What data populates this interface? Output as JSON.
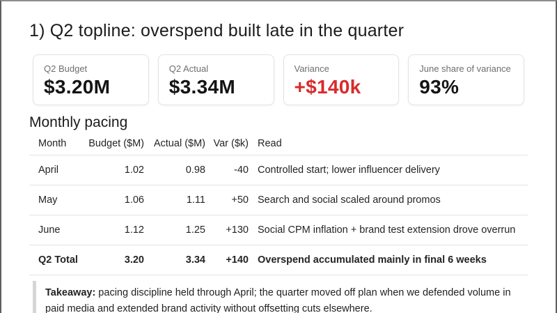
{
  "slide": {
    "title": "1) Q2 topline: overspend built late in the quarter"
  },
  "kpi_cards": [
    {
      "label": "Q2 Budget",
      "value": "$3.20M",
      "value_color": "#141414"
    },
    {
      "label": "Q2 Actual",
      "value": "$3.34M",
      "value_color": "#141414"
    },
    {
      "label": "Variance",
      "value": "+$140k",
      "value_color": "#d92b2b"
    },
    {
      "label": "June share of variance",
      "value": "93%",
      "value_color": "#141414"
    }
  ],
  "section": {
    "heading": "Monthly pacing"
  },
  "table": {
    "columns": [
      "Month",
      "Budget ($M)",
      "Actual ($M)",
      "Var ($k)",
      "Read"
    ],
    "rows": [
      {
        "month": "April",
        "budget": "1.02",
        "actual": "0.98",
        "var": "-40",
        "read": "Controlled start; lower influencer delivery",
        "bold": false
      },
      {
        "month": "May",
        "budget": "1.06",
        "actual": "1.11",
        "var": "+50",
        "read": "Search and social scaled around promos",
        "bold": false
      },
      {
        "month": "June",
        "budget": "1.12",
        "actual": "1.25",
        "var": "+130",
        "read": "Social CPM inflation + brand test extension drove overrun",
        "bold": false
      },
      {
        "month": "Q2 Total",
        "budget": "3.20",
        "actual": "3.34",
        "var": "+140",
        "read": "Overspend accumulated mainly in final 6 weeks",
        "bold": true
      }
    ]
  },
  "takeaway": {
    "label": "Takeaway:",
    "text": " pacing discipline held through April; the quarter moved off plan when we defended volume in paid media and extended brand activity without offsetting cuts elsewhere."
  },
  "colors": {
    "accent_red": "#d92b2b",
    "divider": "#e3e3e3",
    "label_gray": "#6f6f6f"
  }
}
